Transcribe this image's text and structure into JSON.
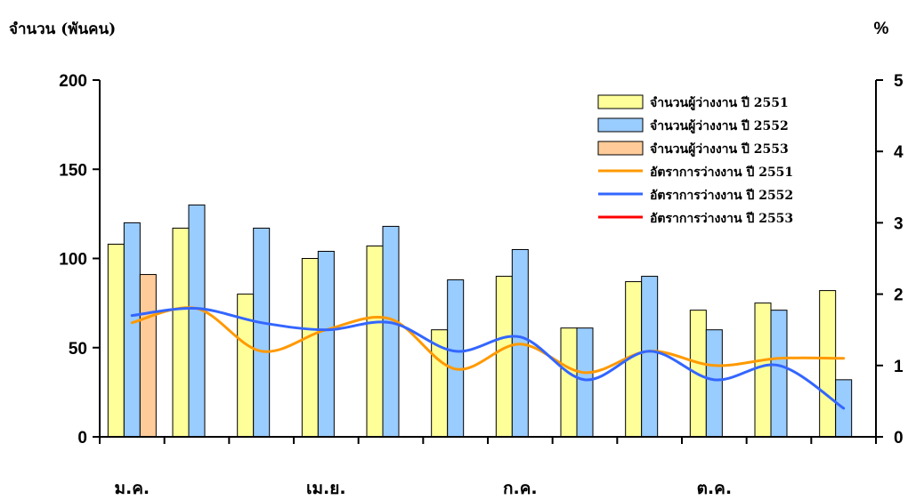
{
  "chart_data": {
    "type": "bar",
    "ylabel_left": "จำนวน (พันคน)",
    "ylabel_right": "%",
    "ylim_left": [
      0,
      200
    ],
    "yticks_left": [
      "0",
      "50",
      "100",
      "150",
      "200"
    ],
    "ylim_right": [
      0,
      5
    ],
    "yticks_right": [
      "0",
      "1",
      "2",
      "3",
      "4",
      "5"
    ],
    "month_labels": [
      "ม.ค.",
      "เม.ย.",
      "ก.ค.",
      "ต.ค."
    ],
    "categories": [
      "1",
      "2",
      "3",
      "4",
      "5",
      "6",
      "7",
      "8",
      "9",
      "10",
      "11",
      "12"
    ],
    "bar_series": [
      {
        "name": "จำนวนผู้ว่างงาน ปี 2551",
        "color": "#ffff99",
        "values": [
          108,
          117,
          80,
          100,
          107,
          60,
          90,
          61,
          87,
          71,
          75,
          82
        ]
      },
      {
        "name": "จำนวนผู้ว่างงาน ปี 2552",
        "color": "#99ccff",
        "values": [
          120,
          130,
          117,
          104,
          118,
          88,
          105,
          61,
          90,
          60,
          71,
          32
        ]
      },
      {
        "name": "จำนวนผู้ว่างงาน ปี 2553",
        "color": "#ffcc99",
        "values": [
          91,
          null,
          null,
          null,
          null,
          null,
          null,
          null,
          null,
          null,
          null,
          null
        ]
      }
    ],
    "line_series": [
      {
        "name": "อัตราการว่างงาน ปี 2551",
        "color": "#ff9900",
        "values": [
          1.6,
          1.8,
          1.2,
          1.5,
          1.65,
          0.95,
          1.3,
          0.9,
          1.2,
          1.0,
          1.1,
          1.1
        ]
      },
      {
        "name": "อัตราการว่างงาน ปี 2552",
        "color": "#3366ff",
        "values": [
          1.7,
          1.8,
          1.6,
          1.5,
          1.6,
          1.2,
          1.4,
          0.8,
          1.2,
          0.8,
          1.0,
          0.4
        ]
      },
      {
        "name": "อัตราการว่างงาน ปี 2553",
        "color": "#ff0000",
        "values": []
      }
    ]
  }
}
